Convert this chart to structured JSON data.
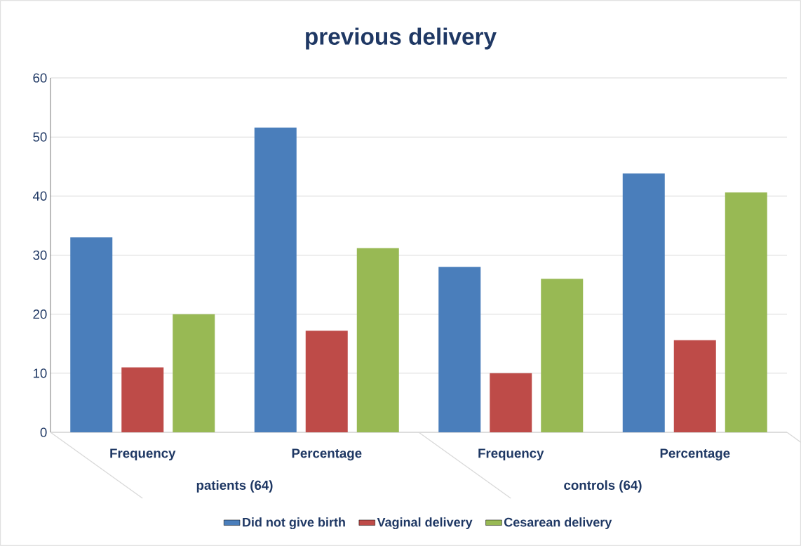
{
  "chart_data": {
    "type": "bar",
    "title": "previous delivery",
    "categories": [
      "Frequency",
      "Percentage",
      "Frequency",
      "Percentage"
    ],
    "annotations": [
      "patients (64)",
      "controls (64)"
    ],
    "series": [
      {
        "name": "Did not give birth",
        "color": "#4a7ebb",
        "values": [
          33,
          51.6,
          28,
          43.8
        ]
      },
      {
        "name": "Vaginal delivery",
        "color": "#be4b48",
        "values": [
          11,
          17.2,
          10,
          15.6
        ]
      },
      {
        "name": "Cesarean delivery",
        "color": "#98b954",
        "values": [
          20,
          31.2,
          26,
          40.6
        ]
      }
    ],
    "ylim": [
      0,
      60
    ],
    "yticks": [
      0,
      10,
      20,
      30,
      40,
      50,
      60
    ],
    "grid": "y",
    "legend": "bottom"
  }
}
